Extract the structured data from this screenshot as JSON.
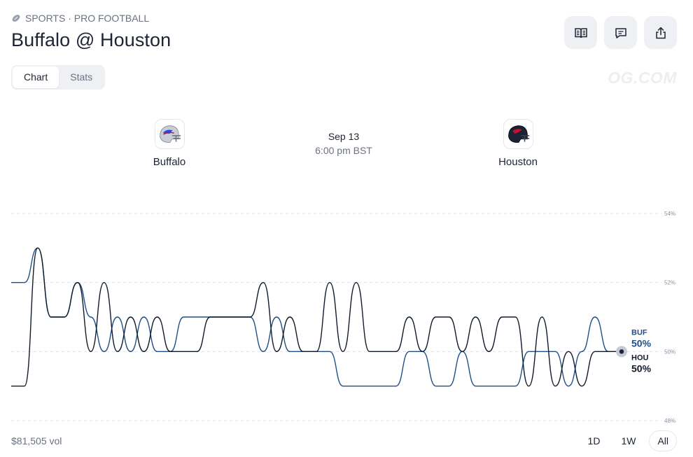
{
  "header": {
    "breadcrumb": "SPORTS · PRO FOOTBALL",
    "title": "Buffalo @ Houston",
    "watermark": "OG.COM"
  },
  "icons": {
    "football": "football-icon",
    "book": "book-open-icon",
    "comment": "comment-icon",
    "share": "share-icon"
  },
  "tabs": [
    {
      "label": "Chart",
      "active": true
    },
    {
      "label": "Stats",
      "active": false
    }
  ],
  "match": {
    "home": {
      "name": "Buffalo",
      "helmet_color": "#c9cdd6",
      "accent": "#1f4fd6"
    },
    "away": {
      "name": "Houston",
      "helmet_color": "#1b2434",
      "accent": "#c8102e"
    },
    "date": "Sep 13",
    "time": "6:00 pm BST"
  },
  "chart_data": {
    "type": "line",
    "ylim": [
      48,
      54
    ],
    "yticks": [
      "54%",
      "52%",
      "50%",
      "48%"
    ],
    "ytick_values": [
      54,
      52,
      50,
      48
    ],
    "grid": true,
    "series": [
      {
        "name": "BUF",
        "color": "#1f4f8a",
        "final_label": "50%",
        "values": [
          52,
          52,
          53,
          51,
          51,
          52,
          51,
          50,
          51,
          50,
          51,
          50,
          50,
          51,
          51,
          51,
          51,
          51,
          51,
          50,
          51,
          50,
          50,
          50,
          50,
          49,
          49,
          49,
          49,
          49,
          50,
          50,
          49,
          49,
          50,
          49,
          49,
          49,
          49,
          50,
          50,
          50,
          49,
          50,
          51,
          50,
          50
        ]
      },
      {
        "name": "HOU",
        "color": "#0f1b2a",
        "final_label": "50%",
        "values": [
          49,
          49,
          53,
          51,
          51,
          52,
          50,
          52,
          50,
          51,
          50,
          51,
          50,
          50,
          50,
          51,
          51,
          51,
          51,
          52,
          50,
          51,
          50,
          50,
          52,
          50,
          52,
          50,
          50,
          50,
          51,
          50,
          51,
          51,
          50,
          51,
          50,
          51,
          51,
          49,
          51,
          49,
          50,
          49,
          50,
          50,
          50
        ]
      }
    ]
  },
  "footer": {
    "volume": "$81,505 vol",
    "ranges": [
      {
        "label": "1D",
        "active": false
      },
      {
        "label": "1W",
        "active": false
      },
      {
        "label": "All",
        "active": true
      }
    ]
  }
}
